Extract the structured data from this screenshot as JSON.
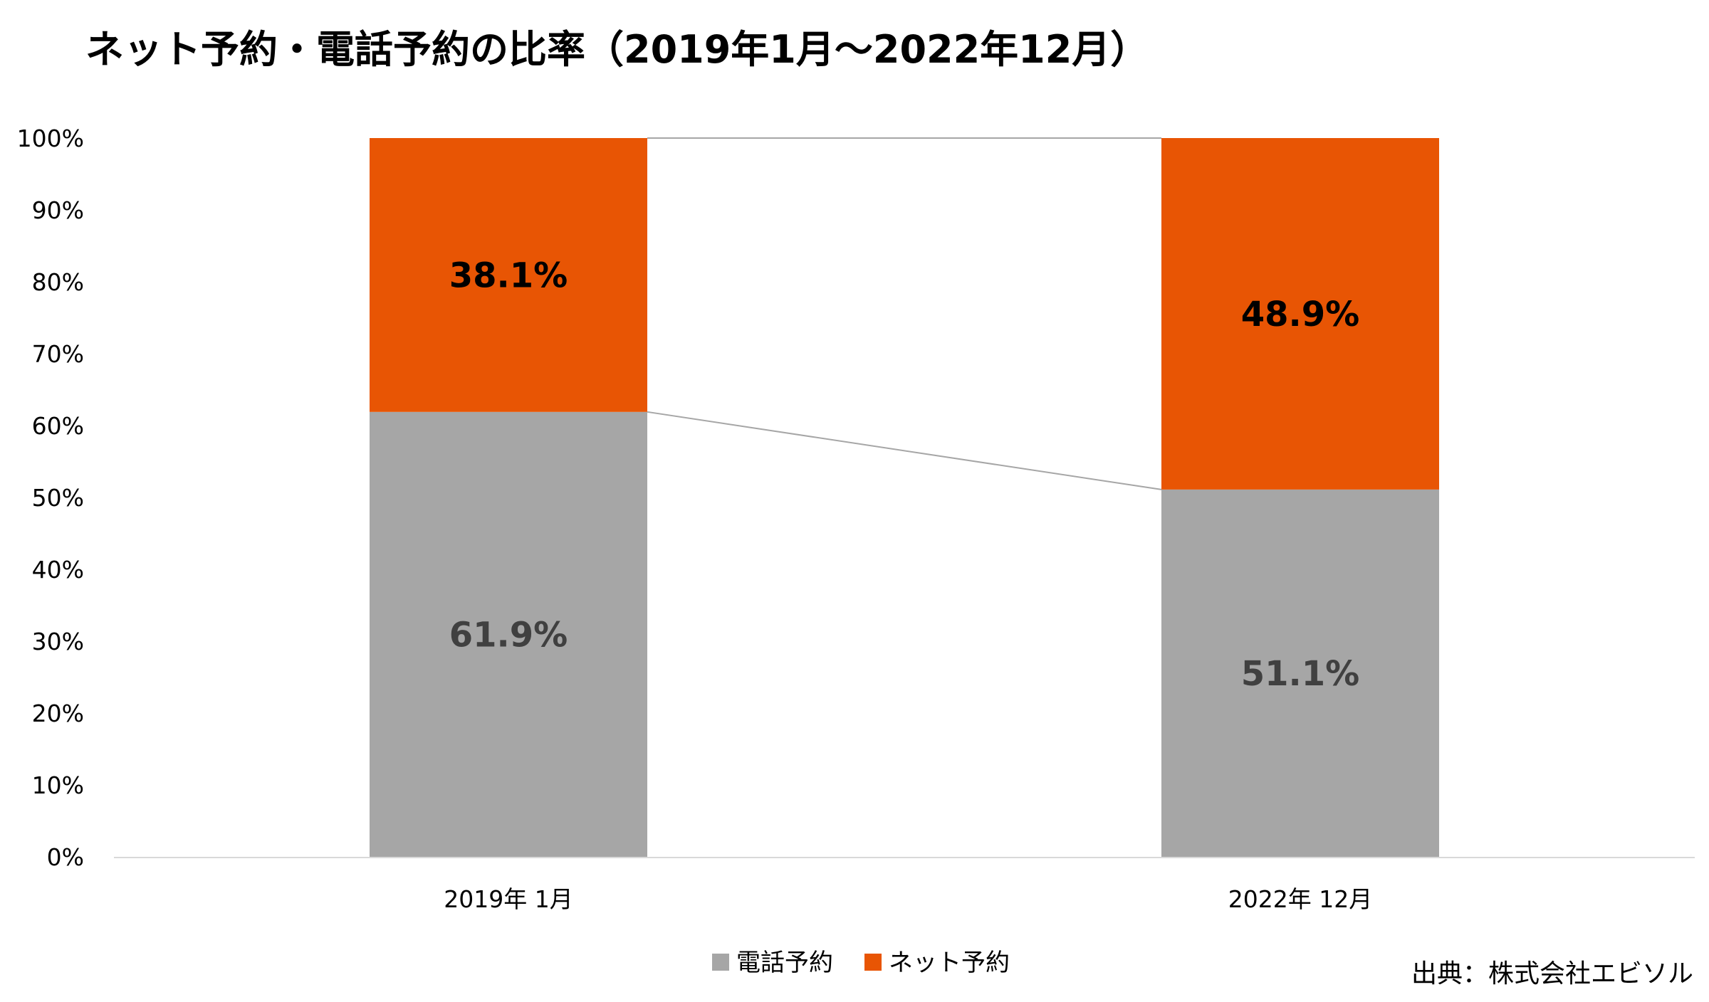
{
  "chart_data": {
    "type": "bar",
    "stacked": true,
    "title": "ネット予約・電話予約の比率（2019年1月〜2022年12月）",
    "categories": [
      "2019年 1月",
      "2022年 12月"
    ],
    "series": [
      {
        "name": "電話予約",
        "values": [
          61.9,
          51.1
        ],
        "labels": [
          "61.9%",
          "51.1%"
        ],
        "color": "#a6a6a6",
        "label_color": "#404040"
      },
      {
        "name": "ネット予約",
        "values": [
          38.1,
          48.9
        ],
        "labels": [
          "38.1%",
          "48.9%"
        ],
        "color": "#e85504",
        "label_color": "#000000"
      }
    ],
    "ylim": [
      0,
      100
    ],
    "yticks": [
      "0%",
      "10%",
      "20%",
      "30%",
      "40%",
      "50%",
      "60%",
      "70%",
      "80%",
      "90%",
      "100%"
    ],
    "legend_position": "bottom",
    "series_lines": true,
    "source": "出典：株式会社エビソル"
  }
}
